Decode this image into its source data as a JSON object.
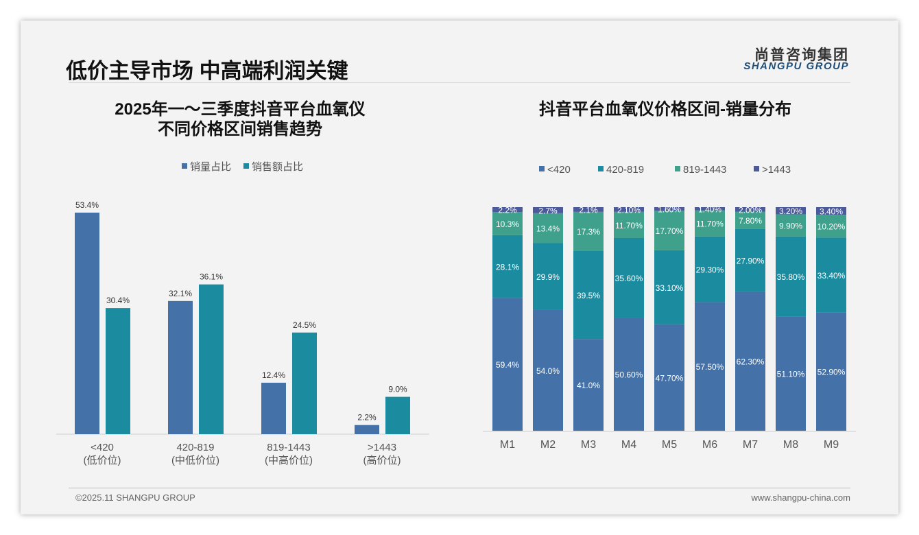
{
  "slide": {
    "title": "低价主导市场 中高端利润关键",
    "logo_cn": "尚普咨询集团",
    "logo_en": "SHANGPU GROUP",
    "footer_left": "©2025.11 SHANGPU GROUP",
    "footer_right": "www.shangpu-china.com"
  },
  "chart_data": [
    {
      "type": "bar",
      "title": "2025年一～三季度抖音平台血氧仪\n不同价格区间销售趋势",
      "title_line1": "2025年一～三季度抖音平台血氧仪",
      "title_line2": "不同价格区间销售趋势",
      "categories": [
        "<420",
        "420-819",
        "819-1443",
        ">1443"
      ],
      "category_sublabels": [
        "(低价位)",
        "(中低价位)",
        "(中高价位)",
        "(高价位)"
      ],
      "series": [
        {
          "name": "销量占比",
          "color": "#4472a8",
          "values": [
            53.4,
            32.1,
            12.4,
            2.2
          ],
          "labels": [
            "53.4%",
            "32.1%",
            "12.4%",
            "2.2%"
          ]
        },
        {
          "name": "销售额占比",
          "color": "#1b8ca0",
          "values": [
            30.4,
            36.1,
            24.5,
            9.0
          ],
          "labels": [
            "30.4%",
            "36.1%",
            "24.5%",
            "9.0%"
          ]
        }
      ],
      "legend": "top",
      "ylim": [
        0,
        55
      ],
      "grid": false
    },
    {
      "type": "bar",
      "stacked": true,
      "title": "抖音平台血氧仪价格区间-销量分布",
      "categories": [
        "M1",
        "M2",
        "M3",
        "M4",
        "M5",
        "M6",
        "M7",
        "M8",
        "M9"
      ],
      "series": [
        {
          "name": "<420",
          "color": "#4472a8",
          "values": [
            59.4,
            54.0,
            41.0,
            50.6,
            47.7,
            57.5,
            62.3,
            51.1,
            52.9
          ],
          "labels": [
            "59.4%",
            "54.0%",
            "41.0%",
            "50.60%",
            "47.70%",
            "57.50%",
            "62.30%",
            "51.10%",
            "52.90%"
          ]
        },
        {
          "name": "420-819",
          "color": "#1b8ca0",
          "values": [
            28.1,
            29.9,
            39.5,
            35.6,
            33.1,
            29.3,
            27.9,
            35.8,
            33.4
          ],
          "labels": [
            "28.1%",
            "29.9%",
            "39.5%",
            "35.60%",
            "33.10%",
            "29.30%",
            "27.90%",
            "35.80%",
            "33.40%"
          ]
        },
        {
          "name": "819-1443",
          "color": "#3fa08c",
          "values": [
            10.3,
            13.4,
            17.3,
            11.7,
            17.7,
            11.7,
            7.8,
            9.9,
            10.2
          ],
          "labels": [
            "10.3%",
            "13.4%",
            "17.3%",
            "11.70%",
            "17.70%",
            "11.70%",
            "7.80%",
            "9.90%",
            "10.20%"
          ]
        },
        {
          "name": ">1443",
          "color": "#4b5a9a",
          "values": [
            2.2,
            2.7,
            2.1,
            2.1,
            1.6,
            1.4,
            2.0,
            3.2,
            3.4
          ],
          "labels": [
            "2.2%",
            "2.7%",
            "2.1%",
            "2.10%",
            "1.60%",
            "1.40%",
            "2.00%",
            "3.20%",
            "3.40%"
          ]
        }
      ],
      "legend": "top",
      "ylim": [
        0,
        100
      ],
      "grid": false
    }
  ]
}
